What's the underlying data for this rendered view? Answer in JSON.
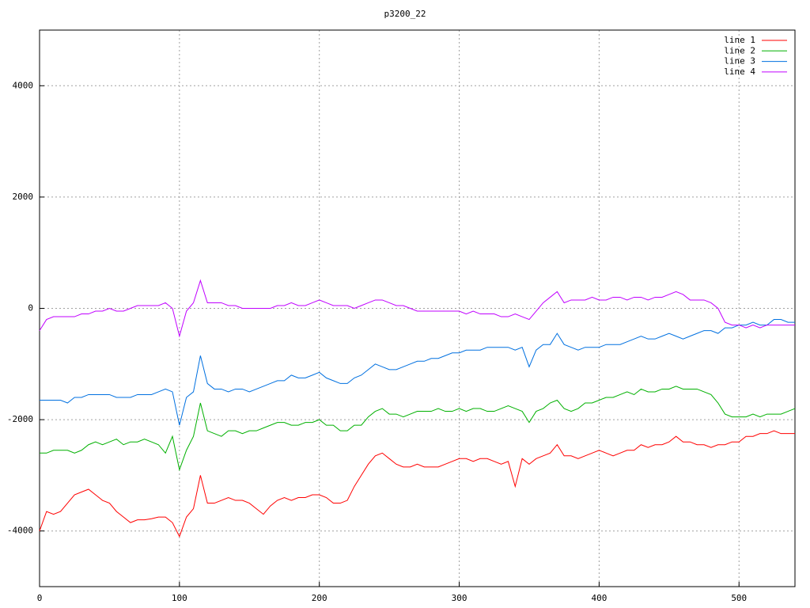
{
  "chart_data": {
    "type": "line",
    "title": "p3200_22",
    "x": [
      0,
      5,
      10,
      15,
      20,
      25,
      30,
      35,
      40,
      45,
      50,
      55,
      60,
      65,
      70,
      75,
      80,
      85,
      90,
      95,
      100,
      105,
      110,
      115,
      120,
      125,
      130,
      135,
      140,
      145,
      150,
      155,
      160,
      165,
      170,
      175,
      180,
      185,
      190,
      195,
      200,
      205,
      210,
      215,
      220,
      225,
      230,
      235,
      240,
      245,
      250,
      255,
      260,
      265,
      270,
      275,
      280,
      285,
      290,
      295,
      300,
      305,
      310,
      315,
      320,
      325,
      330,
      335,
      340,
      345,
      350,
      355,
      360,
      365,
      370,
      375,
      380,
      385,
      390,
      395,
      400,
      405,
      410,
      415,
      420,
      425,
      430,
      435,
      440,
      445,
      450,
      455,
      460,
      465,
      470,
      475,
      480,
      485,
      490,
      495,
      500,
      505,
      510,
      515,
      520,
      525,
      530,
      535,
      540
    ],
    "series": [
      {
        "name": "line 1",
        "color": "#ff0000",
        "values": [
          -4000,
          -3650,
          -3700,
          -3650,
          -3500,
          -3350,
          -3300,
          -3250,
          -3350,
          -3450,
          -3500,
          -3650,
          -3750,
          -3850,
          -3800,
          -3800,
          -3780,
          -3750,
          -3750,
          -3850,
          -4100,
          -3750,
          -3600,
          -3000,
          -3500,
          -3500,
          -3450,
          -3400,
          -3450,
          -3450,
          -3500,
          -3600,
          -3700,
          -3550,
          -3450,
          -3400,
          -3450,
          -3400,
          -3400,
          -3350,
          -3350,
          -3400,
          -3500,
          -3500,
          -3450,
          -3200,
          -3000,
          -2800,
          -2650,
          -2600,
          -2700,
          -2800,
          -2850,
          -2850,
          -2800,
          -2850,
          -2850,
          -2850,
          -2800,
          -2750,
          -2700,
          -2700,
          -2750,
          -2700,
          -2700,
          -2750,
          -2800,
          -2750,
          -3200,
          -2700,
          -2800,
          -2700,
          -2650,
          -2600,
          -2450,
          -2650,
          -2650,
          -2700,
          -2650,
          -2600,
          -2550,
          -2600,
          -2650,
          -2600,
          -2550,
          -2550,
          -2450,
          -2500,
          -2450,
          -2450,
          -2400,
          -2300,
          -2400,
          -2400,
          -2450,
          -2450,
          -2500,
          -2450,
          -2450,
          -2400,
          -2400,
          -2300,
          -2300,
          -2250,
          -2250,
          -2200,
          -2250,
          -2250,
          -2250
        ]
      },
      {
        "name": "line 2",
        "color": "#00b000",
        "values": [
          -2600,
          -2600,
          -2550,
          -2550,
          -2550,
          -2600,
          -2550,
          -2450,
          -2400,
          -2450,
          -2400,
          -2350,
          -2450,
          -2400,
          -2400,
          -2350,
          -2400,
          -2450,
          -2600,
          -2300,
          -2900,
          -2550,
          -2300,
          -1700,
          -2200,
          -2250,
          -2300,
          -2200,
          -2200,
          -2250,
          -2200,
          -2200,
          -2150,
          -2100,
          -2050,
          -2050,
          -2100,
          -2100,
          -2050,
          -2050,
          -2000,
          -2100,
          -2100,
          -2200,
          -2200,
          -2100,
          -2100,
          -1950,
          -1850,
          -1800,
          -1900,
          -1900,
          -1950,
          -1900,
          -1850,
          -1850,
          -1850,
          -1800,
          -1850,
          -1850,
          -1800,
          -1850,
          -1800,
          -1800,
          -1850,
          -1850,
          -1800,
          -1750,
          -1800,
          -1850,
          -2050,
          -1850,
          -1800,
          -1700,
          -1650,
          -1800,
          -1850,
          -1800,
          -1700,
          -1700,
          -1650,
          -1600,
          -1600,
          -1550,
          -1500,
          -1550,
          -1450,
          -1500,
          -1500,
          -1450,
          -1450,
          -1400,
          -1450,
          -1450,
          -1450,
          -1500,
          -1550,
          -1700,
          -1900,
          -1950,
          -1950,
          -1950,
          -1900,
          -1950,
          -1900,
          -1900,
          -1900,
          -1850,
          -1800
        ]
      },
      {
        "name": "line 3",
        "color": "#0070e0",
        "values": [
          -1650,
          -1650,
          -1650,
          -1650,
          -1700,
          -1600,
          -1600,
          -1550,
          -1550,
          -1550,
          -1550,
          -1600,
          -1600,
          -1600,
          -1550,
          -1550,
          -1550,
          -1500,
          -1450,
          -1500,
          -2100,
          -1600,
          -1500,
          -850,
          -1350,
          -1450,
          -1450,
          -1500,
          -1450,
          -1450,
          -1500,
          -1450,
          -1400,
          -1350,
          -1300,
          -1300,
          -1200,
          -1250,
          -1250,
          -1200,
          -1150,
          -1250,
          -1300,
          -1350,
          -1350,
          -1250,
          -1200,
          -1100,
          -1000,
          -1050,
          -1100,
          -1100,
          -1050,
          -1000,
          -950,
          -950,
          -900,
          -900,
          -850,
          -800,
          -800,
          -750,
          -750,
          -750,
          -700,
          -700,
          -700,
          -700,
          -750,
          -700,
          -1050,
          -750,
          -650,
          -650,
          -450,
          -650,
          -700,
          -750,
          -700,
          -700,
          -700,
          -650,
          -650,
          -650,
          -600,
          -550,
          -500,
          -550,
          -550,
          -500,
          -450,
          -500,
          -550,
          -500,
          -450,
          -400,
          -400,
          -450,
          -350,
          -350,
          -300,
          -300,
          -250,
          -300,
          -300,
          -200,
          -200,
          -250,
          -250
        ]
      },
      {
        "name": "line 4",
        "color": "#c000ff",
        "values": [
          -400,
          -200,
          -150,
          -150,
          -150,
          -150,
          -100,
          -100,
          -50,
          -50,
          0,
          -50,
          -50,
          0,
          50,
          50,
          50,
          50,
          100,
          0,
          -500,
          -50,
          100,
          500,
          100,
          100,
          100,
          50,
          50,
          0,
          0,
          0,
          0,
          0,
          50,
          50,
          100,
          50,
          50,
          100,
          150,
          100,
          50,
          50,
          50,
          0,
          50,
          100,
          150,
          150,
          100,
          50,
          50,
          0,
          -50,
          -50,
          -50,
          -50,
          -50,
          -50,
          -50,
          -100,
          -50,
          -100,
          -100,
          -100,
          -150,
          -150,
          -100,
          -150,
          -200,
          -50,
          100,
          200,
          300,
          100,
          150,
          150,
          150,
          200,
          150,
          150,
          200,
          200,
          150,
          200,
          200,
          150,
          200,
          200,
          250,
          300,
          250,
          150,
          150,
          150,
          100,
          0,
          -250,
          -300,
          -300,
          -350,
          -300,
          -350,
          -300,
          -300,
          -300,
          -300,
          -300
        ]
      }
    ],
    "xlim": [
      0,
      540
    ],
    "ylim": [
      -5000,
      5000
    ],
    "xticks": [
      0,
      100,
      200,
      300,
      400,
      500
    ],
    "yticks": [
      -4000,
      -2000,
      0,
      2000,
      4000
    ],
    "grid": true,
    "legend": "top-right"
  }
}
